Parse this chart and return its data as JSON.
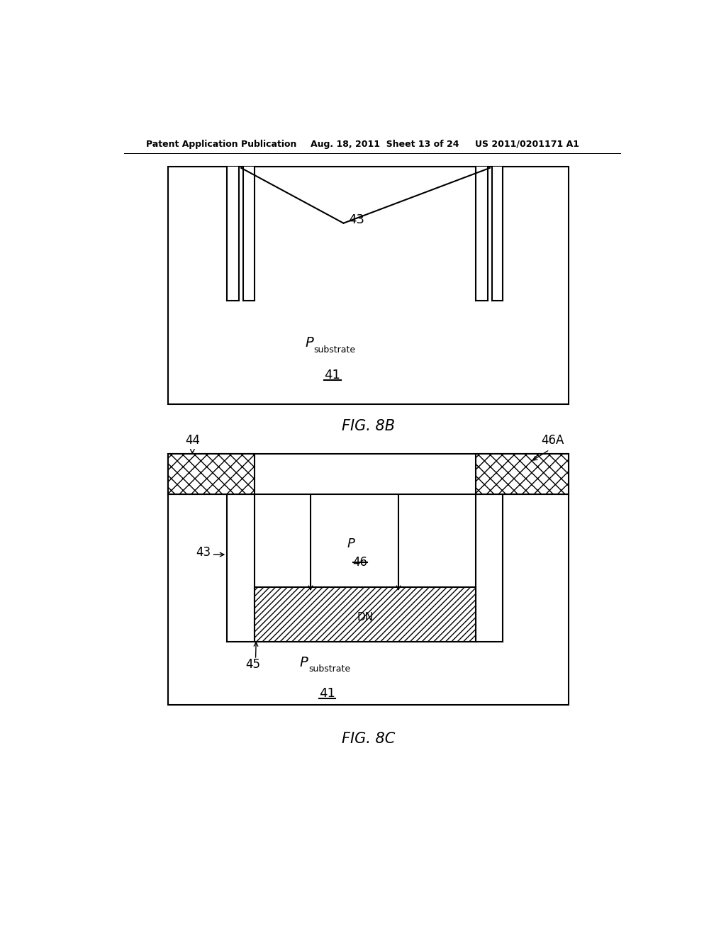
{
  "bg_color": "#ffffff",
  "header_left": "Patent Application Publication",
  "header_mid": "Aug. 18, 2011  Sheet 13 of 24",
  "header_right": "US 2011/0201171 A1",
  "fig8b_caption": "FIG. 8B",
  "fig8c_caption": "FIG. 8C",
  "line_color": "#000000"
}
